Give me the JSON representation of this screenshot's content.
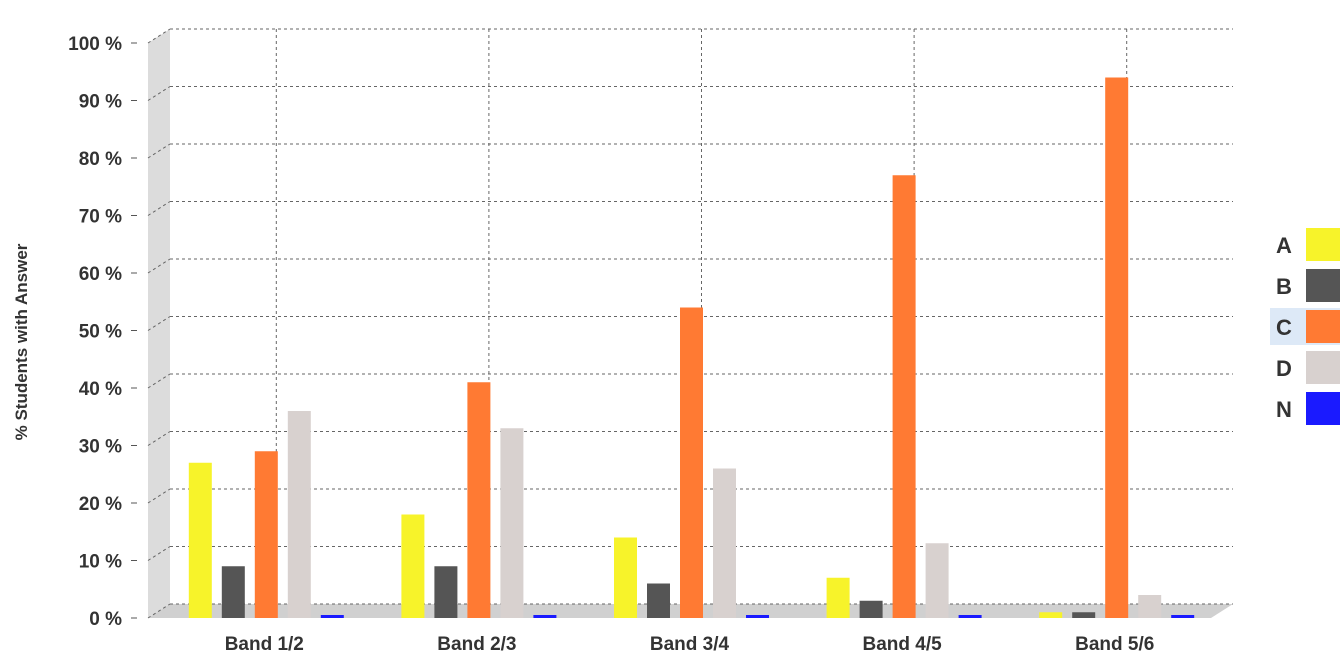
{
  "chart_data": {
    "type": "bar",
    "ylabel": "% Students with Answer",
    "xlabel": "",
    "ylim": [
      0,
      100
    ],
    "y_ticks": [
      0,
      10,
      20,
      30,
      40,
      50,
      60,
      70,
      80,
      90,
      100
    ],
    "tick_suffix": " %",
    "grid": true,
    "legend_position": "right",
    "categories": [
      "Band 1/2",
      "Band 2/3",
      "Band 3/4",
      "Band 4/5",
      "Band 5/6"
    ],
    "series": [
      {
        "name": "A",
        "color": "#f7f32a",
        "values": [
          27,
          18,
          14,
          7,
          1
        ]
      },
      {
        "name": "B",
        "color": "#555555",
        "values": [
          9,
          9,
          6,
          3,
          1
        ]
      },
      {
        "name": "C",
        "color": "#ff7a33",
        "values": [
          29,
          41,
          54,
          77,
          94
        ]
      },
      {
        "name": "D",
        "color": "#d8d1cf",
        "values": [
          36,
          33,
          26,
          13,
          4
        ]
      },
      {
        "name": "N",
        "color": "#1a1aff",
        "values": [
          0,
          0,
          0,
          0,
          0
        ]
      }
    ],
    "legend_highlight": "C"
  }
}
